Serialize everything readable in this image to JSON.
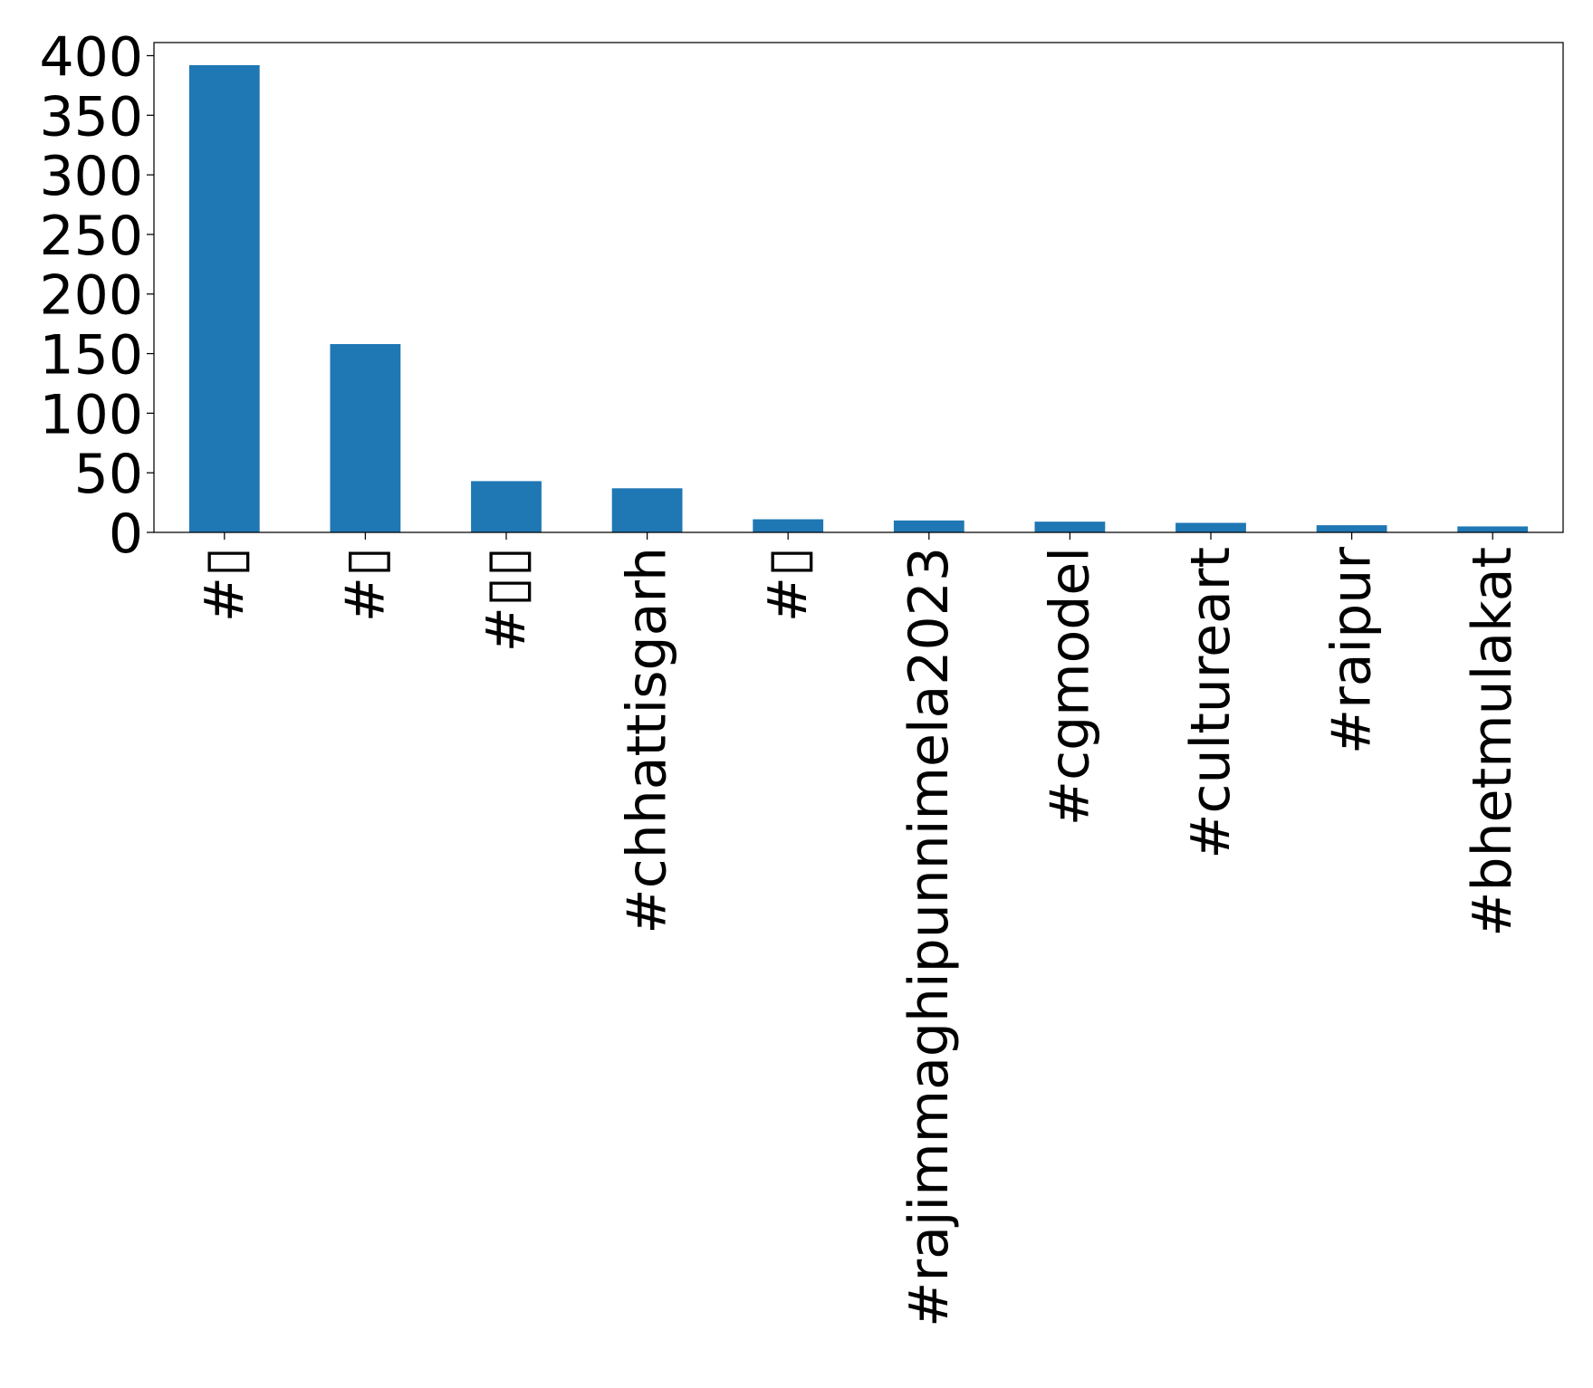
{
  "chart_data": {
    "type": "bar",
    "title": "",
    "xlabel": "",
    "ylabel": "",
    "categories": [
      "#▯",
      "#▯",
      "#▯▯",
      "#chhattisgarh",
      "#▯",
      "#rajimmaghipunnimela2023",
      "#cgmodel",
      "#cultureart",
      "#raipur",
      "#bhetmulakat"
    ],
    "values": [
      392,
      158,
      43,
      37,
      11,
      10,
      9,
      8,
      6,
      5
    ],
    "ylim": [
      0,
      411
    ],
    "yticks": [
      0,
      50,
      100,
      150,
      200,
      250,
      300,
      350,
      400
    ],
    "ytick_labels": [
      "0",
      "50",
      "100",
      "150",
      "200",
      "250",
      "300",
      "350",
      "400"
    ],
    "bar_color": "#1f77b4",
    "grid": false,
    "legend": "none",
    "xtick_rotation": "vertical"
  }
}
